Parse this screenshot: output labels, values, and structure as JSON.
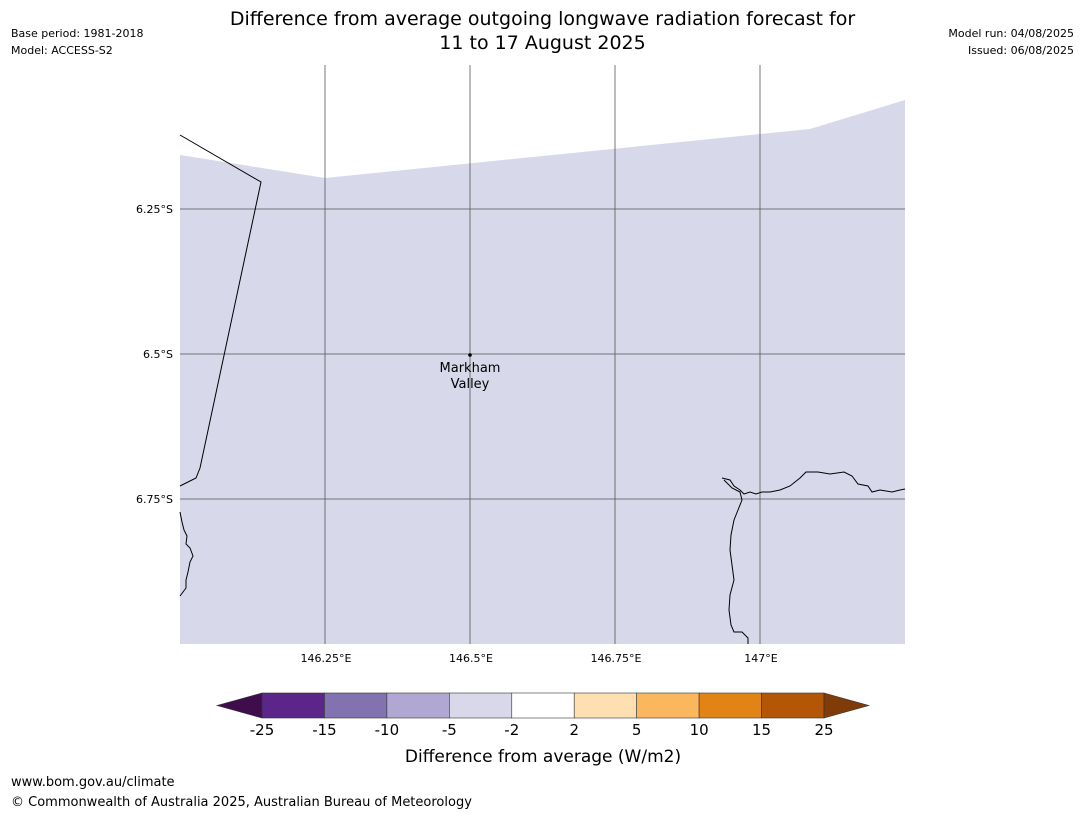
{
  "header": {
    "base_period": "Base period: 1981-2018",
    "model": "Model: ACCESS-S2",
    "model_run": "Model run: 04/08/2025",
    "issued": "Issued: 06/08/2025",
    "title_line1": "Difference from average outgoing longwave radiation forecast for",
    "title_line2": "11 to 17 August 2025"
  },
  "map": {
    "lat_labels": [
      "6.25°S",
      "6.5°S",
      "6.75°S"
    ],
    "lon_labels": [
      "146.25°E",
      "146.5°E",
      "146.75°E",
      "147°E"
    ],
    "place": {
      "name_line1": "Markham",
      "name_line2": "Valley"
    },
    "fill_color": "#d7d8ea",
    "grid_color": "#555555",
    "coast_color": "#000000"
  },
  "colorbar": {
    "ticks": [
      "-25",
      "-15",
      "-10",
      "-5",
      "-2",
      "2",
      "5",
      "10",
      "15",
      "25"
    ],
    "colors": [
      "#3f0d4b",
      "#5b2589",
      "#8272b0",
      "#b0a8d2",
      "#d8d8ea",
      "#ffffff",
      "#fddfb2",
      "#fbb75e",
      "#e28415",
      "#b35707",
      "#7f3b08"
    ],
    "label": "Difference from average (W/m2)"
  },
  "footer": {
    "url": "www.bom.gov.au/climate",
    "copyright": "© Commonwealth of Australia 2025, Australian Bureau of Meteorology"
  }
}
